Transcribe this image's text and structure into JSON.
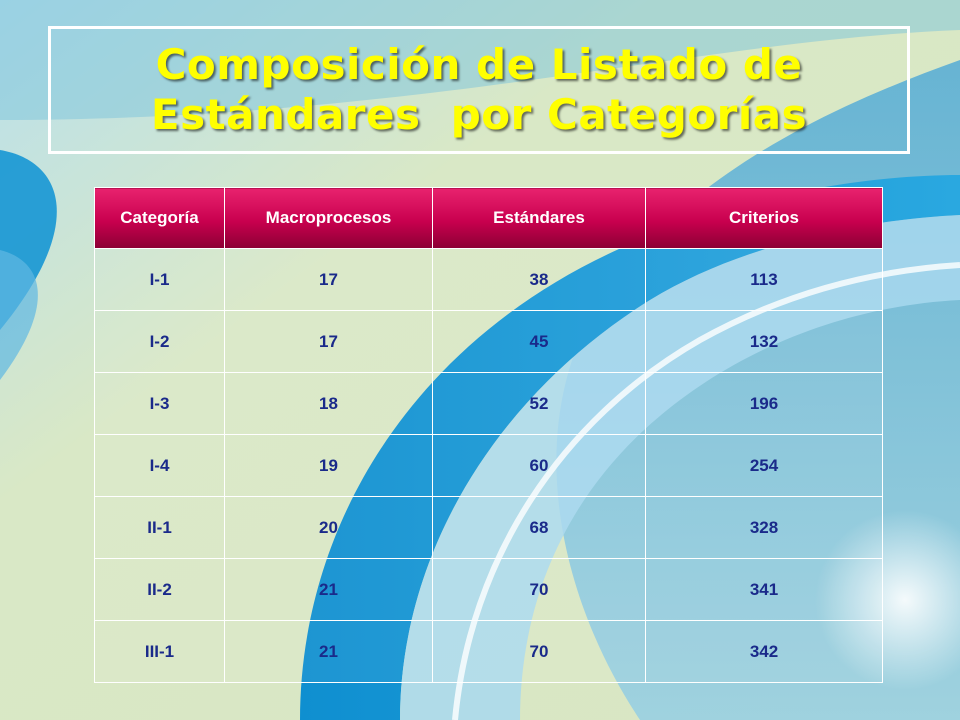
{
  "title": {
    "line1": "Composición de Listado de",
    "line2": "Estándares  por Categorías"
  },
  "table": {
    "headers": [
      "Categoría",
      "Macroprocesos",
      "Estándares",
      "Criterios"
    ],
    "rows": [
      [
        "I-1",
        "17",
        "38",
        "113"
      ],
      [
        "I-2",
        "17",
        "45",
        "132"
      ],
      [
        "I-3",
        "18",
        "52",
        "196"
      ],
      [
        "I-4",
        "19",
        "60",
        "254"
      ],
      [
        "II-1",
        "20",
        "68",
        "328"
      ],
      [
        "II-2",
        "21",
        "70",
        "341"
      ],
      [
        "III-1",
        "21",
        "70",
        "342"
      ]
    ]
  },
  "colors": {
    "title": "#ffff00",
    "header_bg": "#c8004e",
    "header_text": "#ffffff",
    "cell_text": "#1a2a8a",
    "background_accent": "#1a9ad6"
  }
}
